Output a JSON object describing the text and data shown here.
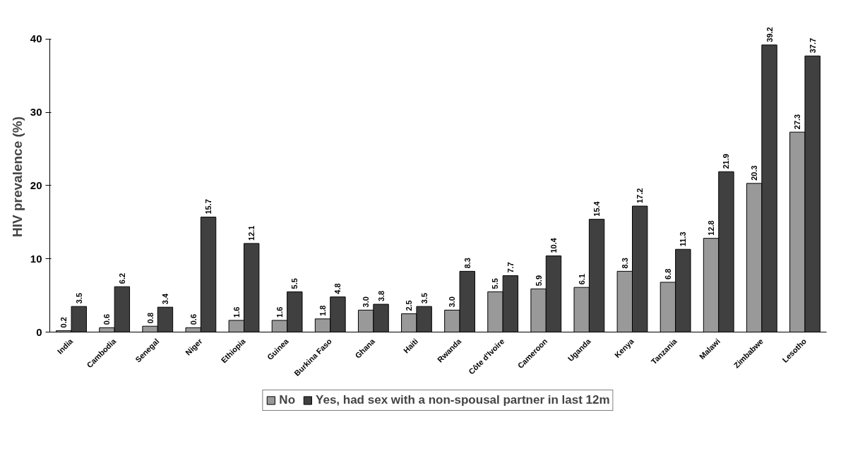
{
  "chart_data": {
    "type": "bar",
    "ylabel": "HIV prevalence (%)",
    "categories": [
      "India",
      "Cambodia",
      "Senegal",
      "Niger",
      "Ethiopia",
      "Guinea",
      "Burkina Faso",
      "Ghana",
      "Haiti",
      "Rwanda",
      "Côte d'Ivoire",
      "Cameroon",
      "Uganda",
      "Kenya",
      "Tanzania",
      "Malawi",
      "Zimbabwe",
      "Lesotho"
    ],
    "series": [
      {
        "name": "No",
        "color": "#999999",
        "values": [
          0.2,
          0.6,
          0.8,
          0.6,
          1.6,
          1.6,
          1.8,
          3.0,
          2.5,
          3.0,
          5.5,
          5.9,
          6.1,
          8.3,
          6.8,
          12.8,
          20.3,
          27.3
        ],
        "value_labels": [
          "0.2",
          "0.6",
          "0.8",
          "0.6",
          "1.6",
          "1.6",
          "1.8",
          "3.0",
          "2.5",
          "3.0",
          "5.5",
          "5.9",
          "6.1",
          "8.3",
          "6.8",
          "12.8",
          "20.3",
          "27.3"
        ]
      },
      {
        "name": "Yes, had sex with a non-spousal partner in last 12m",
        "color": "#404040",
        "values": [
          3.5,
          6.2,
          3.4,
          15.7,
          12.1,
          5.5,
          4.8,
          3.8,
          3.5,
          8.3,
          7.7,
          10.4,
          15.4,
          17.2,
          11.3,
          21.9,
          39.2,
          37.7
        ],
        "value_labels": [
          "3.5",
          "6.2",
          "3.4",
          "15.7",
          "12.1",
          "5.5",
          "4.8",
          "3.8",
          "3.5",
          "8.3",
          "7.7",
          "10.4",
          "15.4",
          "17.2",
          "11.3",
          "21.9",
          "39.2",
          "37.7"
        ]
      }
    ],
    "ylim": [
      0,
      40
    ],
    "yticks": [
      0,
      10,
      20,
      30,
      40
    ],
    "grid": false,
    "legend": "bottom"
  }
}
